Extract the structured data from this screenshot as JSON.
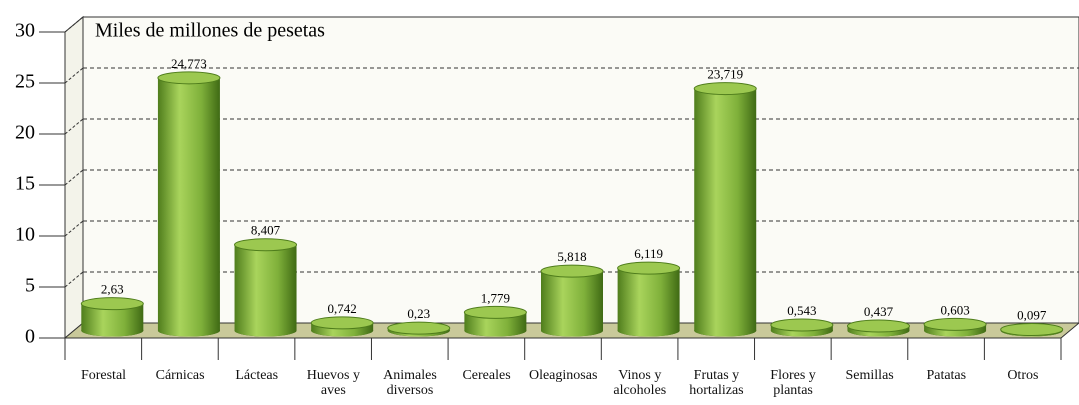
{
  "chart_data": {
    "type": "bar",
    "annotation": "Miles de millones de pesetas",
    "categories": [
      "Forestal",
      "Cárnicas",
      "Lácteas",
      "Huevos y aves",
      "Animales diversos",
      "Cereales",
      "Oleaginosas",
      "Vinos y alcoholes",
      "Frutas y hortalizas",
      "Flores y plantas",
      "Semillas",
      "Patatas",
      "Otros"
    ],
    "values": [
      2.63,
      24.773,
      8.407,
      0.742,
      0.23,
      1.779,
      5.818,
      6.119,
      23.719,
      0.543,
      0.437,
      0.603,
      0.097
    ],
    "value_labels": [
      "2,63",
      "24,773",
      "8,407",
      "0,742",
      "0,23",
      "1,779",
      "5,818",
      "6,119",
      "23,719",
      "0,543",
      "0,437",
      "0,603",
      "0,097"
    ],
    "color": "#7fb03a",
    "ylim": [
      0,
      30
    ],
    "yticks": [
      0,
      5,
      10,
      15,
      20,
      25,
      30
    ],
    "grid": true
  }
}
